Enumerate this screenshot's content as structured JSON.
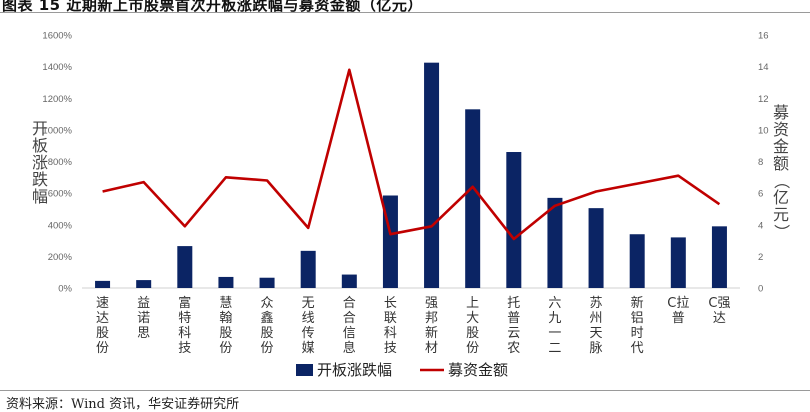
{
  "figure": {
    "title": "图表 15 近期新上市股票首次开板涨跌幅与募资金额（亿元）",
    "source": "资料来源：Wind 资讯，华安证券研究所"
  },
  "chart_data": {
    "type": "bar",
    "categories": [
      "速达股份",
      "益诺思",
      "富特科技",
      "慧翰股份",
      "众鑫股份",
      "无线传媒",
      "合合信息",
      "长联科技",
      "强邦新材",
      "上大股份",
      "托普云农",
      "六九一二",
      "苏州天脉",
      "新铝时代",
      "C拉普",
      "C强达"
    ],
    "category_lines": [
      [
        "速",
        "达",
        "股",
        "份"
      ],
      [
        "益",
        "诺",
        "思"
      ],
      [
        "富",
        "特",
        "科",
        "技"
      ],
      [
        "慧",
        "翰",
        "股",
        "份"
      ],
      [
        "众",
        "鑫",
        "股",
        "份"
      ],
      [
        "无",
        "线",
        "传",
        "媒"
      ],
      [
        "合",
        "合",
        "信",
        "息"
      ],
      [
        "长",
        "联",
        "科",
        "技"
      ],
      [
        "强",
        "邦",
        "新",
        "材"
      ],
      [
        "上",
        "大",
        "股",
        "份"
      ],
      [
        "托",
        "普",
        "云",
        "农"
      ],
      [
        "六",
        "九",
        "一",
        "二"
      ],
      [
        "苏",
        "州",
        "天",
        "脉"
      ],
      [
        "新",
        "铝",
        "时",
        "代"
      ],
      [
        "C拉",
        "普"
      ],
      [
        "C强",
        "达"
      ]
    ],
    "series": [
      {
        "name": "开板涨跌幅",
        "type": "bar",
        "axis": "left",
        "color": "#0b2464",
        "values": [
          45,
          50,
          265,
          70,
          65,
          235,
          85,
          585,
          1425,
          1130,
          860,
          570,
          505,
          340,
          320,
          390
        ]
      },
      {
        "name": "募资金额",
        "type": "line",
        "axis": "right",
        "color": "#c00000",
        "values": [
          6.1,
          6.7,
          3.9,
          7.0,
          6.8,
          3.8,
          13.8,
          3.4,
          3.9,
          6.4,
          3.1,
          5.2,
          6.1,
          6.6,
          7.1,
          5.3
        ]
      }
    ],
    "ylabel": [
      "开",
      "板",
      "涨",
      "跌",
      "幅"
    ],
    "ylabel_right": [
      "募",
      "资",
      "金",
      "额",
      "（",
      "亿",
      "元",
      "）"
    ],
    "ylim": [
      0,
      1600
    ],
    "yticks": [
      "0%",
      "200%",
      "400%",
      "600%",
      "800%",
      "1000%",
      "1200%",
      "1400%",
      "1600%"
    ],
    "ylim_right": [
      0,
      16
    ],
    "yticks_right": [
      "0",
      "2",
      "4",
      "6",
      "8",
      "10",
      "12",
      "14",
      "16"
    ],
    "grid": false,
    "legend": {
      "placement": "bottom",
      "items": [
        "开板涨跌幅",
        "募资金额"
      ]
    }
  }
}
